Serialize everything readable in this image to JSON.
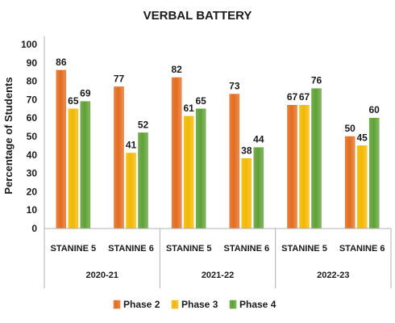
{
  "chart_data": {
    "type": "bar",
    "title": "VERBAL BATTERY",
    "ylabel": "Percentage of Students",
    "xlabel": "",
    "ylim": [
      0,
      100
    ],
    "yticks": [
      0,
      10,
      20,
      30,
      40,
      50,
      60,
      70,
      80,
      90,
      100
    ],
    "groups": [
      "2020-21",
      "2021-22",
      "2022-23"
    ],
    "categories": [
      "STANINE 5",
      "STANINE 6",
      "STANINE 5",
      "STANINE 6",
      "STANINE 5",
      "STANINE 6"
    ],
    "series": [
      {
        "name": "Phase 2",
        "color": "#e36c1e",
        "values": [
          86,
          77,
          82,
          73,
          67,
          50
        ]
      },
      {
        "name": "Phase 3",
        "color": "#f2b800",
        "values": [
          65,
          41,
          61,
          38,
          67,
          45
        ]
      },
      {
        "name": "Phase 4",
        "color": "#5ea035",
        "values": [
          69,
          52,
          65,
          44,
          76,
          60
        ]
      }
    ],
    "grid": false,
    "legend_position": "bottom",
    "data_labels": true
  }
}
